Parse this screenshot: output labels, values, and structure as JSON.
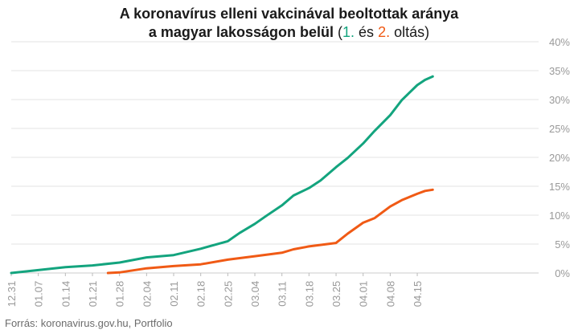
{
  "title": {
    "line1": "A koronavírus elleni vakcinával beoltottak aránya",
    "line2_prefix": "a magyar lakosságon belül",
    "paren_open": "(",
    "dose1_label": "1.",
    "conjunction": "és",
    "dose2_label": "2.",
    "suffix": "oltás)"
  },
  "source": "Forrás: koronavirus.gov.hu, Portfolio",
  "colors": {
    "dose1": "#13a47e",
    "dose2": "#f05a15",
    "grid": "#e3e3e3",
    "tick": "#999999"
  },
  "chart_data": {
    "type": "line",
    "x_unit": "date",
    "x_start": "12.31",
    "x_ticks": [
      "12.31",
      "01.07",
      "01.14",
      "01.21",
      "01.28",
      "02.04",
      "02.11",
      "02.18",
      "02.25",
      "03.04",
      "03.11",
      "03.18",
      "03.25",
      "04.01",
      "04.08",
      "04.15"
    ],
    "x_last": "04.19",
    "y_ticks": [
      "0%",
      "5%",
      "10%",
      "15%",
      "20%",
      "25%",
      "30%",
      "35%",
      "40%"
    ],
    "ylim": [
      0,
      40
    ],
    "y_axis_side": "right",
    "grid": "horizontal",
    "series": [
      {
        "name": "1.",
        "color_key": "dose1",
        "points": [
          [
            "12.31",
            0
          ],
          [
            "01.07",
            0.5
          ],
          [
            "01.14",
            1.0
          ],
          [
            "01.21",
            1.3
          ],
          [
            "01.28",
            1.8
          ],
          [
            "02.04",
            2.7
          ],
          [
            "02.11",
            3.1
          ],
          [
            "02.18",
            4.2
          ],
          [
            "02.25",
            5.5
          ],
          [
            "02.28",
            6.9
          ],
          [
            "03.04",
            8.5
          ],
          [
            "03.07",
            9.9
          ],
          [
            "03.11",
            11.7
          ],
          [
            "03.14",
            13.4
          ],
          [
            "03.18",
            14.7
          ],
          [
            "03.21",
            16.0
          ],
          [
            "03.25",
            18.3
          ],
          [
            "03.28",
            19.9
          ],
          [
            "04.01",
            22.4
          ],
          [
            "04.04",
            24.6
          ],
          [
            "04.08",
            27.3
          ],
          [
            "04.11",
            29.9
          ],
          [
            "04.15",
            32.5
          ],
          [
            "04.17",
            33.4
          ],
          [
            "04.19",
            34.0
          ]
        ]
      },
      {
        "name": "2.",
        "color_key": "dose2",
        "points": [
          [
            "01.25",
            0
          ],
          [
            "01.28",
            0.1
          ],
          [
            "02.04",
            0.8
          ],
          [
            "02.11",
            1.2
          ],
          [
            "02.18",
            1.5
          ],
          [
            "02.25",
            2.3
          ],
          [
            "03.04",
            2.9
          ],
          [
            "03.11",
            3.5
          ],
          [
            "03.14",
            4.1
          ],
          [
            "03.18",
            4.6
          ],
          [
            "03.25",
            5.2
          ],
          [
            "03.28",
            6.8
          ],
          [
            "04.01",
            8.7
          ],
          [
            "04.04",
            9.5
          ],
          [
            "04.08",
            11.5
          ],
          [
            "04.11",
            12.6
          ],
          [
            "04.15",
            13.7
          ],
          [
            "04.17",
            14.2
          ],
          [
            "04.19",
            14.4
          ]
        ]
      }
    ]
  }
}
